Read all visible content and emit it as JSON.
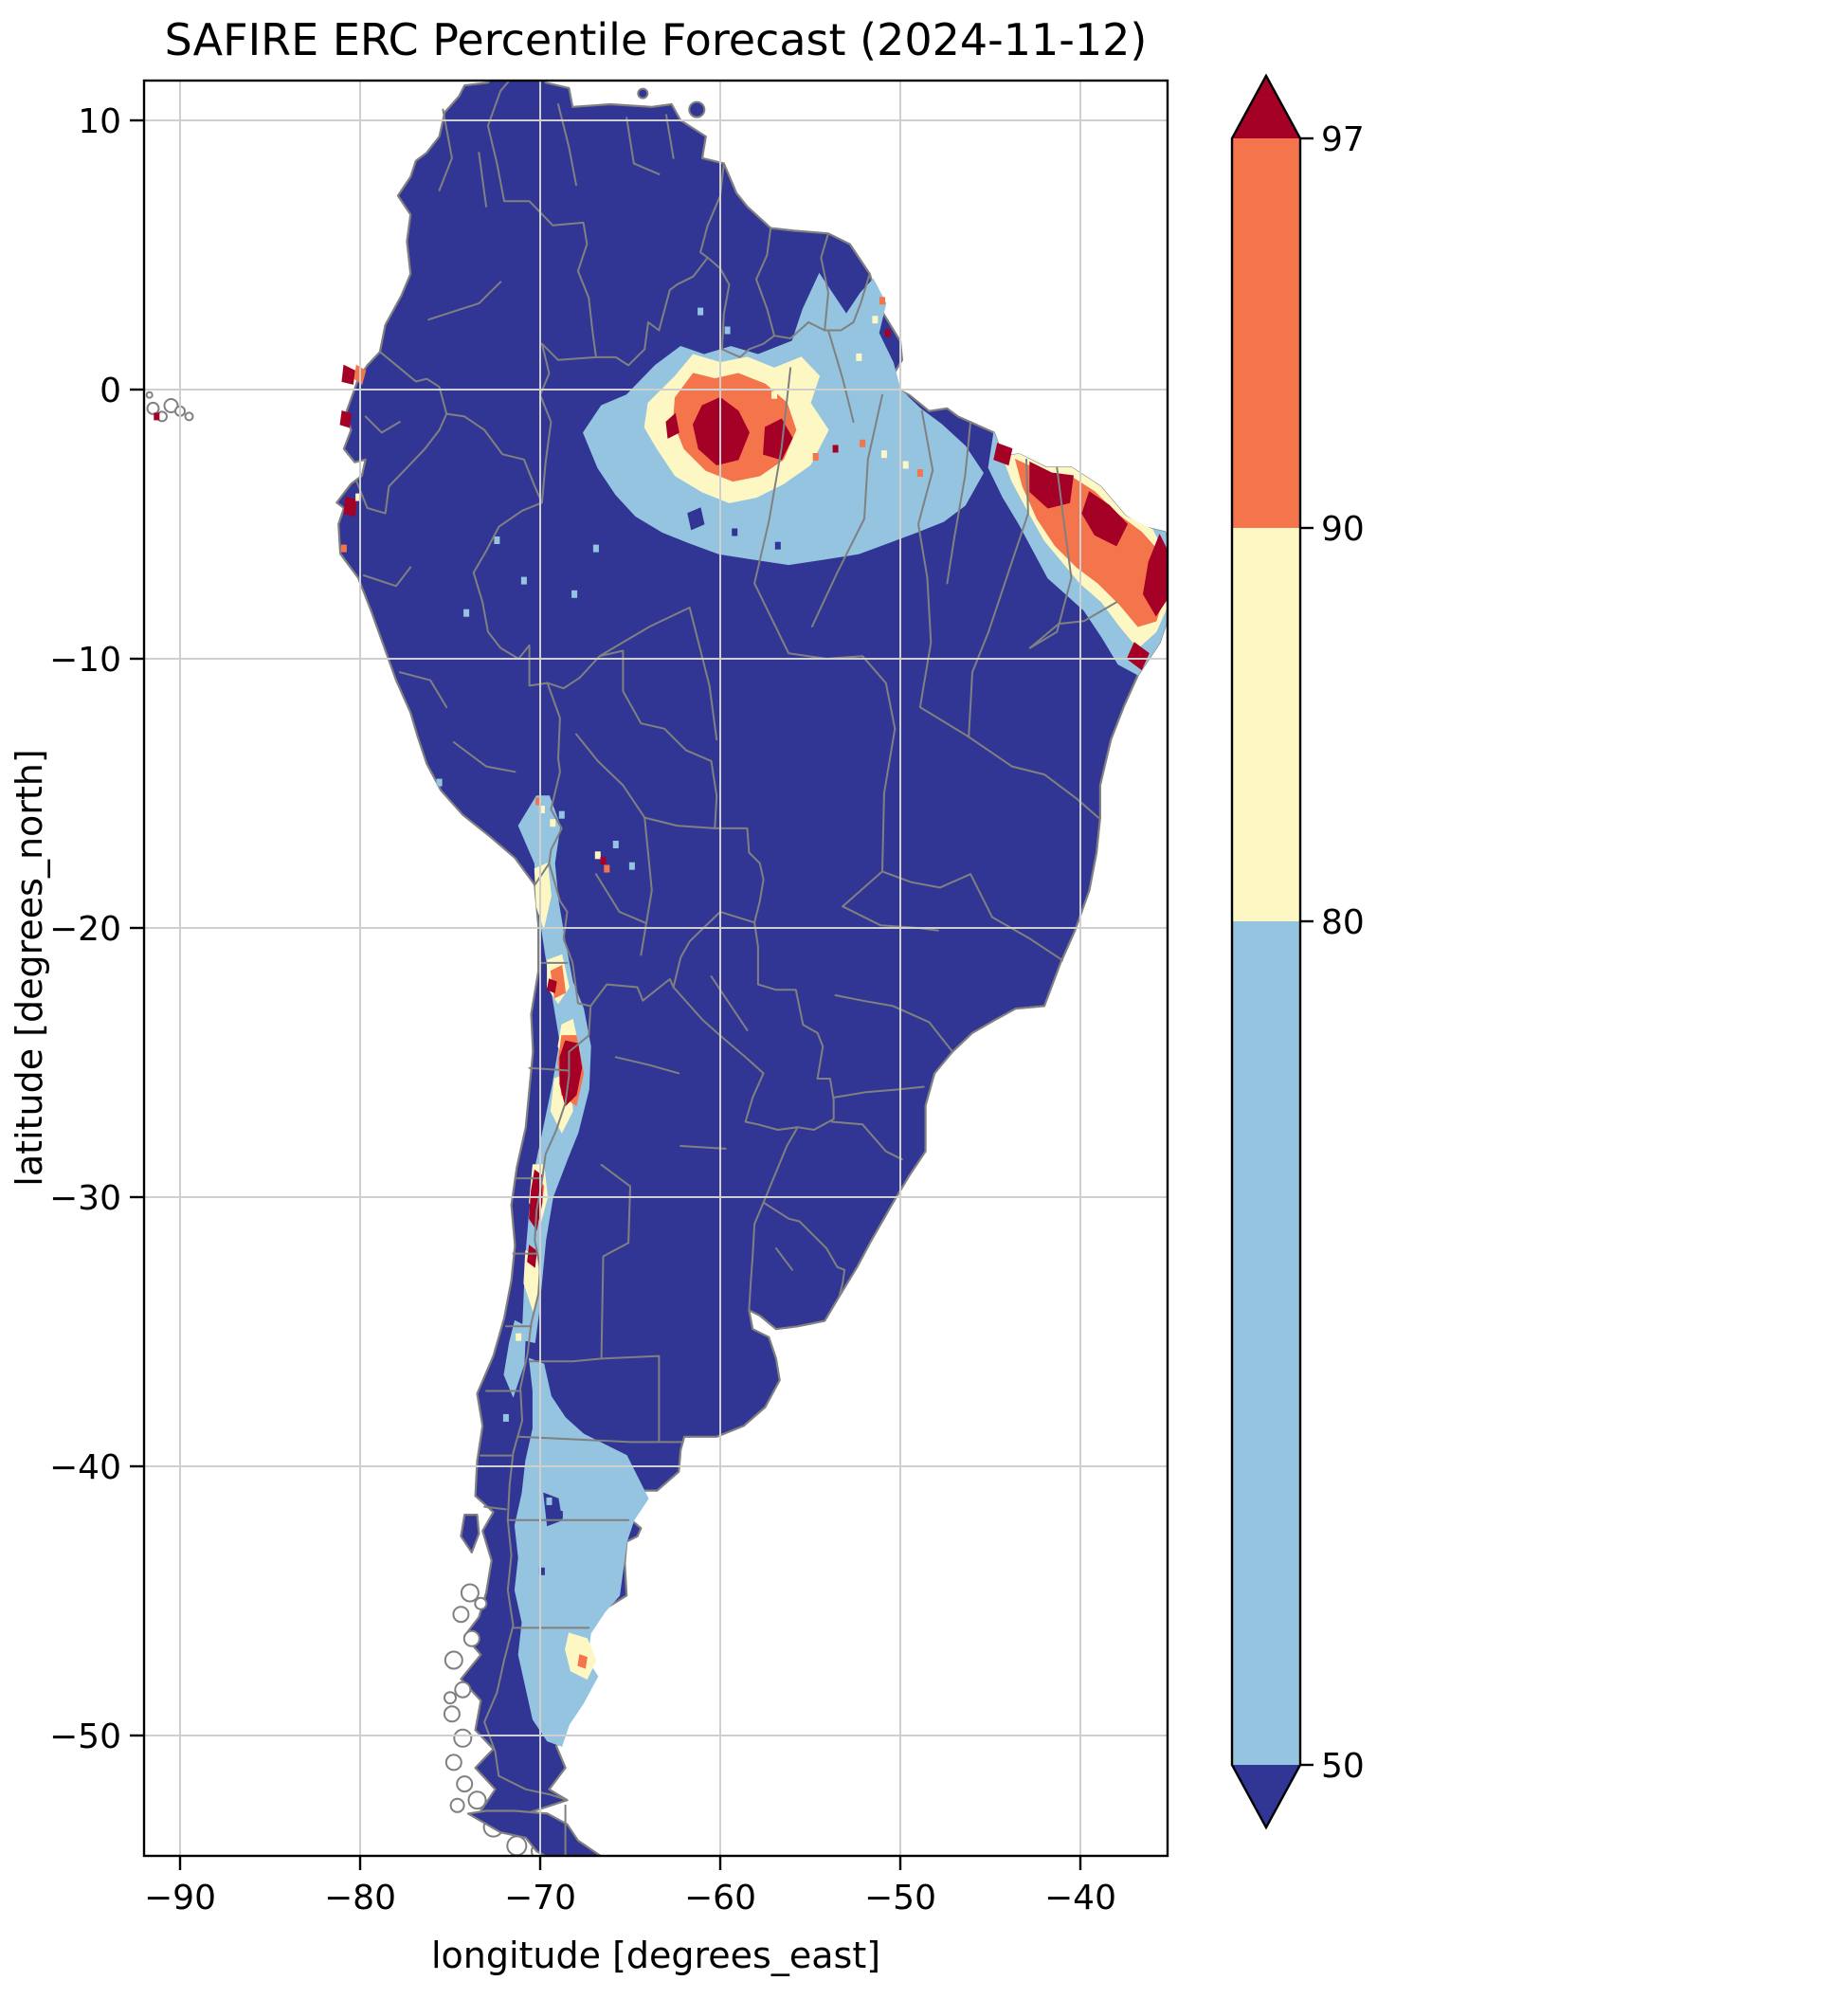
{
  "title": "SAFIRE ERC Percentile Forecast (2024-11-12)",
  "axes": {
    "xlabel": "longitude [degrees_east]",
    "ylabel": "latitude [degrees_north]",
    "x_tick_labels": [
      "−90",
      "−80",
      "−70",
      "−60",
      "−50",
      "−40"
    ],
    "y_tick_labels": [
      "10",
      "0",
      "−10",
      "−20",
      "−30",
      "−40",
      "−50"
    ]
  },
  "colorbar": {
    "tick_labels": [
      "97",
      "90",
      "80",
      "50"
    ],
    "levels": [
      50,
      80,
      90,
      97
    ],
    "extend": "both"
  },
  "colors": {
    "below_50": "#313695",
    "p50_80": "#94c4df",
    "p80_90": "#fdf8c3",
    "p90_97": "#f4744b",
    "above_97": "#a50026",
    "coast": "#808080",
    "grid": "#cfcfcf",
    "frame": "#000000",
    "background": "#ffffff"
  },
  "chart_data": {
    "type": "heatmap",
    "title": "SAFIRE ERC Percentile Forecast (2024-11-12)",
    "date": "2024-11-12",
    "variable": "ERC percentile (Energy Release Component)",
    "xlabel": "longitude [degrees_east]",
    "ylabel": "latitude [degrees_north]",
    "xlim": [
      -92,
      -35
    ],
    "ylim": [
      -54.5,
      11.5
    ],
    "x_ticks": [
      -90,
      -80,
      -70,
      -60,
      -50,
      -40
    ],
    "y_ticks": [
      10,
      0,
      -10,
      -20,
      -30,
      -40,
      -50
    ],
    "grid": true,
    "colorbar": {
      "levels": [
        50,
        80,
        90,
        97
      ],
      "extend": "both",
      "tick_labels": [
        97,
        90,
        80,
        50
      ],
      "bins": [
        {
          "range": "<50",
          "color": "#313695"
        },
        {
          "range": "50-80",
          "color": "#94c4df"
        },
        {
          "range": "80-90",
          "color": "#fdf8c3"
        },
        {
          "range": "90-97",
          "color": "#f4744b"
        },
        {
          "range": ">97",
          "color": "#a50026"
        }
      ]
    },
    "regions": [
      {
        "name": "north-central Amazon band (Roraima/north Para)",
        "lon": [
          -67,
          -48
        ],
        "lat": [
          -6.5,
          3
        ],
        "percentile": "50-80 band with 80-97 interior"
      },
      {
        "name": "core hotspot north of the Amazon river",
        "lon": [
          -62,
          -56
        ],
        "lat": [
          -3,
          0
        ],
        "percentile": ">97"
      },
      {
        "name": "Guyana/Suriname interior",
        "lon": [
          -60,
          -53
        ],
        "lat": [
          1,
          4.5
        ],
        "percentile": "50-80"
      },
      {
        "name": "northeast Brazil coastal arc (Maranhao to Alagoas)",
        "lon": [
          -45,
          -34.8
        ],
        "lat": [
          -10.5,
          -2
        ],
        "percentile": "80 to >97 along coast, 50-80 inland fringe"
      },
      {
        "name": "coastal Ecuador / far-north Peru",
        "lon": [
          -81.3,
          -79.5
        ],
        "lat": [
          -5,
          1
        ],
        "percentile": "isolated 90 to >97"
      },
      {
        "name": "Altiplano near Lake Titicaca",
        "lon": [
          -70.5,
          -68.8
        ],
        "lat": [
          -16.5,
          -15
        ],
        "percentile": "50-97 specks"
      },
      {
        "name": "Andes strip along Chile/Bolivia/Argentina border",
        "lon": [
          -71,
          -67
        ],
        "lat": [
          -34.5,
          -15
        ],
        "percentile": "50-80 strip with 80-97 patches"
      },
      {
        "name": "Atacama/Catamarca hotspot",
        "lon": [
          -69,
          -67.5
        ],
        "lat": [
          -27,
          -24
        ],
        "percentile": ">97"
      },
      {
        "name": "Coquimbo hotspot",
        "lon": [
          -70.7,
          -69.8
        ],
        "lat": [
          -31.5,
          -29
        ],
        "percentile": ">97"
      },
      {
        "name": "central Bolivia specks",
        "lon": [
          -67,
          -64.5
        ],
        "lat": [
          -18.5,
          -16.5
        ],
        "percentile": "50-97 specks"
      },
      {
        "name": "Patagonia (Neuquen to Santa Cruz)",
        "lon": [
          -71,
          -64
        ],
        "lat": [
          -50.5,
          -36
        ],
        "percentile": "50-80"
      },
      {
        "name": "Deseado patch in Santa Cruz",
        "lon": [
          -68.5,
          -66.8
        ],
        "lat": [
          -48,
          -46
        ],
        "percentile": "80-90 with 90-97 speck"
      },
      {
        "name": "Galapagos speck",
        "lon": [
          -91.5,
          -91
        ],
        "lat": [
          -1.2,
          -0.8
        ],
        "percentile": ">97 single cell"
      },
      {
        "name": "rest of continent",
        "lon": [
          -81.3,
          -34.8
        ],
        "lat": [
          -55,
          12.4
        ],
        "percentile": "<50"
      }
    ]
  }
}
